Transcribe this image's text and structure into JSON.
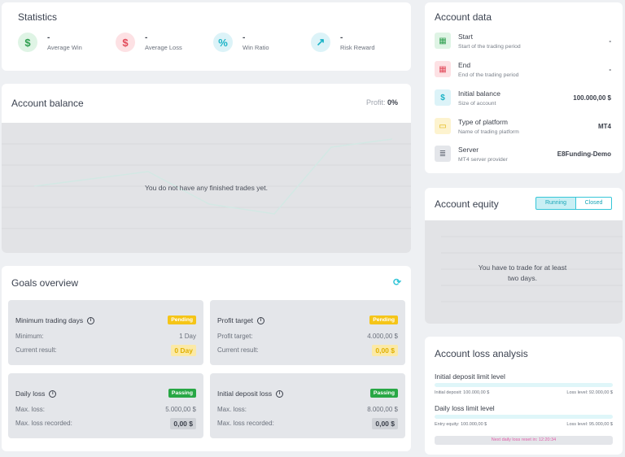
{
  "statistics": {
    "title": "Statistics",
    "items": [
      {
        "value": "-",
        "label": "Average Win",
        "icon": "dollar-icon",
        "glyph": "$"
      },
      {
        "value": "-",
        "label": "Average Loss",
        "icon": "dollar-icon",
        "glyph": "$"
      },
      {
        "value": "-",
        "label": "Win Ratio",
        "icon": "percent-icon",
        "glyph": "%"
      },
      {
        "value": "-",
        "label": "Risk Reward",
        "icon": "trend-up-icon",
        "glyph": "↗"
      }
    ]
  },
  "account_balance": {
    "title": "Account balance",
    "profit_label": "Profit:",
    "profit_value": "0%",
    "empty_message": "You do not have any finished trades yet."
  },
  "goals": {
    "title": "Goals overview",
    "cards": [
      {
        "title": "Minimum trading days",
        "badge": "Pending",
        "row1_label": "Minimum:",
        "row1_value": "1 Day",
        "row2_label": "Current result:",
        "row2_value": "0 Day"
      },
      {
        "title": "Profit target",
        "badge": "Pending",
        "row1_label": "Profit target:",
        "row1_value": "4.000,00 $",
        "row2_label": "Current result:",
        "row2_value": "0,00 $"
      },
      {
        "title": "Daily loss",
        "badge": "Passing",
        "row1_label": "Max. loss:",
        "row1_value": "5.000,00 $",
        "row2_label": "Max. loss recorded:",
        "row2_value": "0,00 $"
      },
      {
        "title": "Initial deposit loss",
        "badge": "Passing",
        "row1_label": "Max. loss:",
        "row1_value": "8.000,00 $",
        "row2_label": "Max. loss recorded:",
        "row2_value": "0,00 $"
      }
    ]
  },
  "account_data": {
    "title": "Account data",
    "items": [
      {
        "label": "Start",
        "sub": "Start of the trading period",
        "value": "-",
        "icon": "calendar-icon"
      },
      {
        "label": "End",
        "sub": "End of the trading period",
        "value": "-",
        "icon": "calendar-icon"
      },
      {
        "label": "Initial balance",
        "sub": "Size of account",
        "value": "100.000,00 $",
        "icon": "dollar-icon"
      },
      {
        "label": "Type of platform",
        "sub": "Name of trading platform",
        "value": "MT4",
        "icon": "card-icon"
      },
      {
        "label": "Server",
        "sub": "MT4 server provider",
        "value": "E8Funding-Demo",
        "icon": "database-icon"
      }
    ]
  },
  "account_equity": {
    "title": "Account equity",
    "tab_running": "Running",
    "tab_closed": "Closed",
    "empty_message": "You have to trade for at least two days."
  },
  "loss_analysis": {
    "title": "Account loss analysis",
    "initial_title": "Initial deposit limit level",
    "initial_left": "Initial deposit: 100.000,00 $",
    "initial_right": "Loss level: 92.000,00 $",
    "daily_title": "Daily loss limit level",
    "daily_left": "Entry equity: 100.000,00 $",
    "daily_right": "Loss level: 95.000,00 $",
    "reset_text": "Next daily loss reset in: 12:20:34"
  },
  "colors": {
    "pending": "#f5c518",
    "passing": "#28a745",
    "accent": "#36c6d8"
  }
}
